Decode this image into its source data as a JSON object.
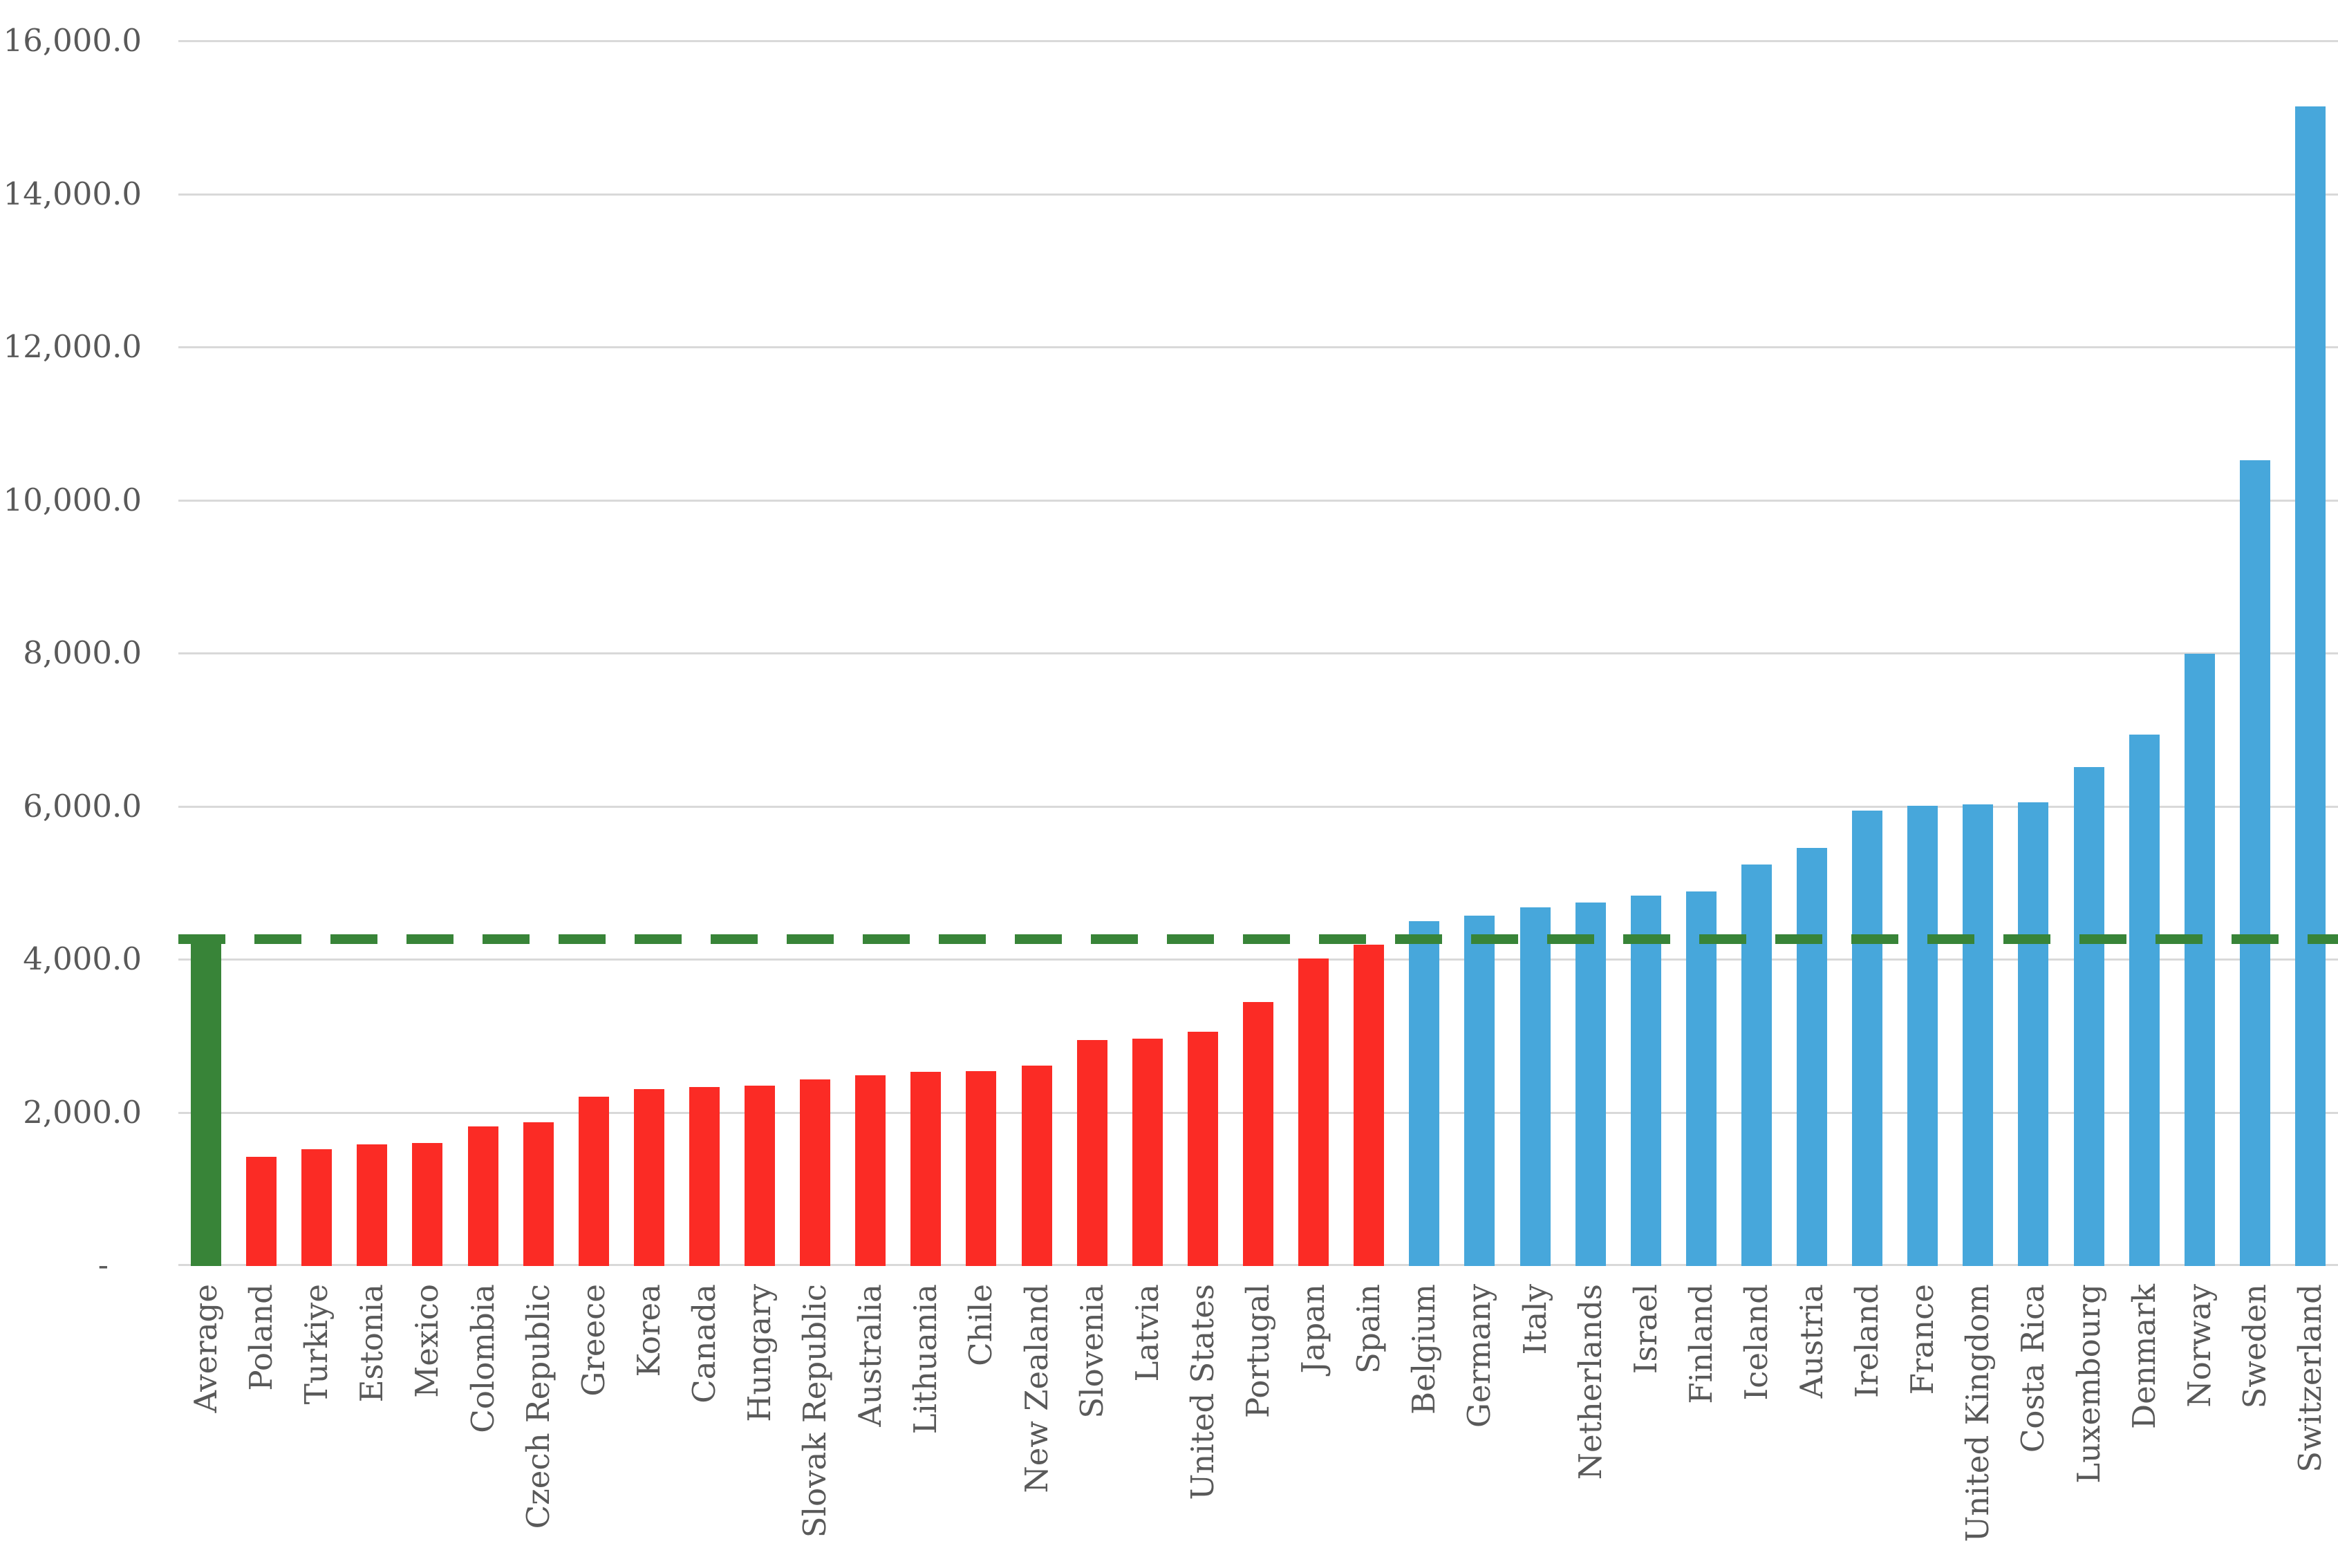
{
  "chart_data": {
    "type": "bar",
    "title": "",
    "xlabel": "",
    "ylabel": "",
    "ylim": [
      0,
      16000
    ],
    "y_tick_step": 2000,
    "grid": true,
    "legend_position": "none",
    "y_tick_labels": [
      "16,000.0",
      "14,000.0",
      "12,000.0",
      "10,000.0",
      "8,000.0",
      "6,000.0",
      "4,000.0",
      "2,000.0",
      "-"
    ],
    "categories": [
      "Average",
      "Poland",
      "Turkiye",
      "Estonia",
      "Mexico",
      "Colombia",
      "Czech Republic",
      "Greece",
      "Korea",
      "Canada",
      "Hungary",
      "Slovak Republic",
      "Australia",
      "Lithuania",
      "Chile",
      "New Zealand",
      "Slovenia",
      "Latvia",
      "United States",
      "Portugal",
      "Japan",
      "Spain",
      "Belgium",
      "Germany",
      "Italy",
      "Netherlands",
      "Israel",
      "Finland",
      "Iceland",
      "Austria",
      "Ireland",
      "France",
      "United Kingdom",
      "Costa Rica",
      "Luxembourg",
      "Denmark",
      "Norway",
      "Sweden",
      "Switzerland"
    ],
    "values": [
      4270,
      1430,
      1530,
      1590,
      1610,
      1820,
      1880,
      2210,
      2310,
      2340,
      2360,
      2440,
      2490,
      2540,
      2550,
      2620,
      2950,
      2970,
      3060,
      3450,
      4020,
      4200,
      4510,
      4580,
      4690,
      4750,
      4840,
      4890,
      5250,
      5460,
      5950,
      6010,
      6030,
      6060,
      6520,
      6940,
      8000,
      10530,
      15150
    ],
    "average_line": 4270,
    "annotations": [
      "dashed horizontal line at the Average value spanning the plot"
    ],
    "colors": {
      "average_bar": "#388438",
      "below_average_bar": "#fb2b25",
      "above_average_bar": "#47a7db",
      "average_dash_line": "#388438",
      "gridline": "#d9d9d9",
      "axis_label_text": "#595959",
      "background": "#ffffff"
    }
  }
}
